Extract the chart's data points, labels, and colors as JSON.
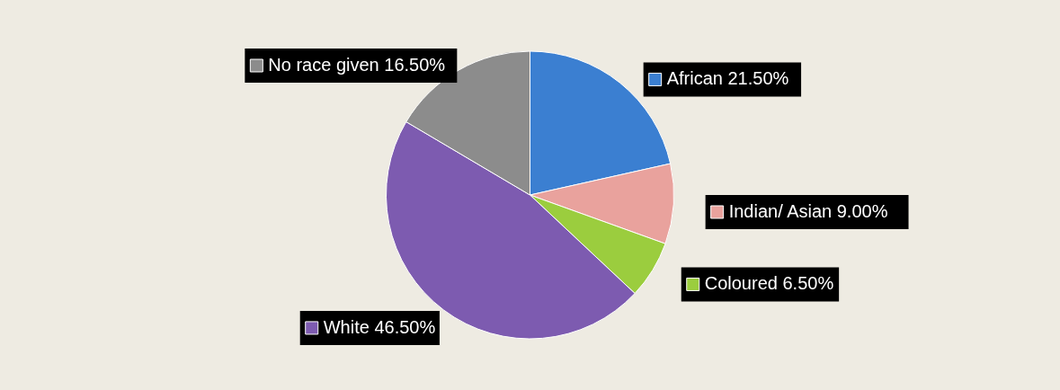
{
  "chart_data": {
    "type": "pie",
    "categories": [
      "African",
      "Indian/ Asian",
      "Coloured",
      "White",
      "No race given"
    ],
    "values": [
      21.5,
      9.0,
      6.5,
      46.5,
      16.5
    ],
    "value_labels": [
      "21.50%",
      "9.00%",
      "6.50%",
      "46.50%",
      "16.50%"
    ],
    "colors": [
      "#3b7fd1",
      "#e9a29d",
      "#9bcd3e",
      "#7d5bb0",
      "#8c8c8c"
    ],
    "legend": "right"
  }
}
